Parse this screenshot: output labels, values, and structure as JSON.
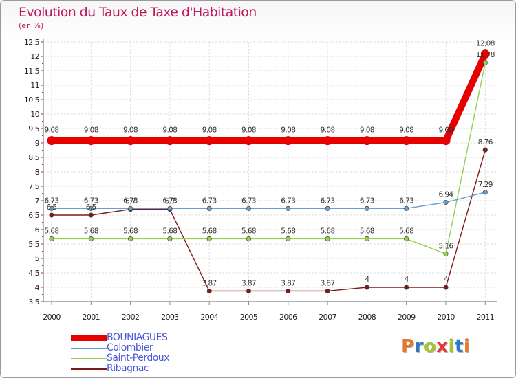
{
  "header": {
    "title": "Evolution du Taux de Taxe d'Habitation",
    "subtitle": "(en %)"
  },
  "logo": {
    "text": "Proxiti",
    "letter_colors": [
      "#e6782e",
      "#2f78c4",
      "#a6c532",
      "#e33a3a",
      "#a6c532",
      "#2f78c4",
      "#e6782e"
    ]
  },
  "chart_data": {
    "type": "line",
    "title": "Evolution du Taux de Taxe d'Habitation",
    "subtitle": "(en %)",
    "xlabel": "",
    "ylabel": "",
    "x": [
      "2000",
      "2001",
      "2002",
      "2003",
      "2004",
      "2005",
      "2006",
      "2007",
      "2008",
      "2009",
      "2010",
      "2011"
    ],
    "ylim": [
      3.5,
      12.5
    ],
    "yticks": [
      "3.5",
      "4",
      "4.5",
      "5",
      "5.5",
      "6",
      "6.5",
      "7",
      "7.5",
      "8",
      "8.5",
      "9",
      "9.5",
      "10",
      "10.5",
      "11",
      "11.5",
      "12",
      "12.5"
    ],
    "grid": true,
    "legend_position": "bottom-left",
    "series": [
      {
        "name": "BOUNIAGUES",
        "color": "#e60000",
        "values": [
          9.08,
          9.08,
          9.08,
          9.08,
          9.08,
          9.08,
          9.08,
          9.08,
          9.08,
          9.08,
          9.08,
          12.08
        ],
        "labels": [
          "9.08",
          "9.08",
          "9.08",
          "9.08",
          "9.08",
          "9.08",
          "9.08",
          "9.08",
          "9.08",
          "9.08",
          "9.08",
          "12.08"
        ]
      },
      {
        "name": "Colombier",
        "color": "#6a9ed0",
        "values": [
          6.73,
          6.73,
          6.73,
          6.73,
          6.73,
          6.73,
          6.73,
          6.73,
          6.73,
          6.73,
          6.94,
          7.29
        ],
        "labels": [
          "6.73",
          "6.73",
          "6.73",
          "6.73",
          "6.73",
          "6.73",
          "6.73",
          "6.73",
          "6.73",
          "6.73",
          "6.94",
          "7.29"
        ]
      },
      {
        "name": "Saint-Perdoux",
        "color": "#92d050",
        "values": [
          5.68,
          5.68,
          5.68,
          5.68,
          5.68,
          5.68,
          5.68,
          5.68,
          5.68,
          5.68,
          5.16,
          11.78
        ],
        "labels": [
          "5.68",
          "5.68",
          "5.68",
          "5.68",
          "5.68",
          "5.68",
          "5.68",
          "5.68",
          "5.68",
          "5.68",
          "5.16",
          "11.78"
        ]
      },
      {
        "name": "Ribagnac",
        "color": "#7b1a1a",
        "values": [
          6.5,
          6.5,
          6.7,
          6.7,
          3.87,
          3.87,
          3.87,
          3.87,
          4,
          4,
          4,
          8.76
        ],
        "labels": [
          "6.5",
          "6.5",
          "6.7",
          "6.7",
          "3.87",
          "3.87",
          "3.87",
          "3.87",
          "4",
          "4",
          "4",
          "8.76"
        ]
      }
    ]
  }
}
